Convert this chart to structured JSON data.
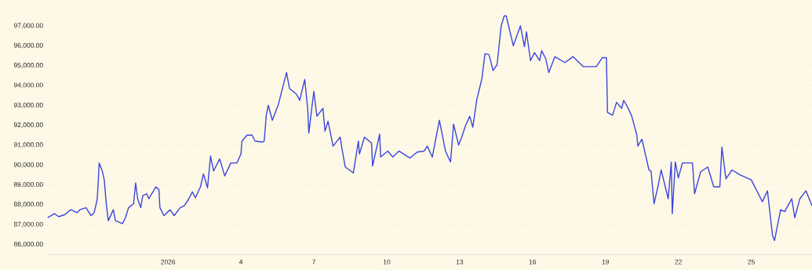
{
  "chart_data": {
    "type": "line",
    "color": "#3b45dc",
    "x": [
      "2025-12-27T01:00",
      "2025-12-27T08:00",
      "2025-12-27T12:00",
      "2025-12-27T18:00",
      "2025-12-28T00:00",
      "2025-12-28T06:00",
      "2025-12-28T09:00",
      "2025-12-28T15:00",
      "2025-12-28T20:00",
      "2025-12-28T23:00",
      "2025-12-29T02:00",
      "2025-12-29T03:00",
      "2025-12-29T04:00",
      "2025-12-29T07:00",
      "2025-12-29T09:00",
      "2025-12-29T11:00",
      "2025-12-29T13:00",
      "2025-12-29T18:00",
      "2025-12-29T20:00",
      "2025-12-30T03:00",
      "2025-12-30T06:00",
      "2025-12-30T09:00",
      "2025-12-30T14:00",
      "2025-12-30T16:00",
      "2025-12-30T18:00",
      "2025-12-30T21:00",
      "2025-12-30T23:00",
      "2025-12-31T03:00",
      "2025-12-31T05:00",
      "2025-12-31T12:00",
      "2025-12-31T15:00",
      "2025-12-31T16:00",
      "2025-12-31T20:00",
      "2026-01-01T02:00",
      "2026-01-01T06:00",
      "2026-01-01T12:00",
      "2026-01-01T16:00",
      "2026-01-01T20:00",
      "2026-01-02T00:00",
      "2026-01-02T03:00",
      "2026-01-02T08:00",
      "2026-01-02T11:00",
      "2026-01-02T15:00",
      "2026-01-02T18:00",
      "2026-01-02T21:00",
      "2026-01-03T03:00",
      "2026-01-03T08:00",
      "2026-01-03T14:00",
      "2026-01-03T20:00",
      "2026-01-04T00:00",
      "2026-01-04T01:00",
      "2026-01-04T06:00",
      "2026-01-04T11:00",
      "2026-01-04T14:00",
      "2026-01-04T21:00",
      "2026-01-04T23:00",
      "2026-01-05T01:00",
      "2026-01-05T03:00",
      "2026-01-05T07:00",
      "2026-01-05T13:00",
      "2026-01-05T17:00",
      "2026-01-05T21:00",
      "2026-01-06T00:00",
      "2026-01-06T07:00",
      "2026-01-06T10:00",
      "2026-01-06T15:00",
      "2026-01-06T18:00",
      "2026-01-06T19:00",
      "2026-01-07T00:00",
      "2026-01-07T03:00",
      "2026-01-07T09:00",
      "2026-01-07T11:00",
      "2026-01-07T14:00",
      "2026-01-07T19:00",
      "2026-01-08T02:00",
      "2026-01-08T04:00",
      "2026-01-08T07:00",
      "2026-01-08T15:00",
      "2026-01-08T20:00",
      "2026-01-08T21:00",
      "2026-01-09T02:00",
      "2026-01-09T09:00",
      "2026-01-09T10:00",
      "2026-01-09T17:00",
      "2026-01-09T18:00",
      "2026-01-10T01:00",
      "2026-01-10T06:00",
      "2026-01-10T12:00",
      "2026-01-10T23:00",
      "2026-01-11T06:00",
      "2026-01-11T13:00",
      "2026-01-11T16:00",
      "2026-01-11T21:00",
      "2026-01-12T04:00",
      "2026-01-12T10:00",
      "2026-01-12T15:00",
      "2026-01-12T18:00",
      "2026-01-12T23:00",
      "2026-01-13T02:00",
      "2026-01-13T06:00",
      "2026-01-13T10:00",
      "2026-01-13T13:00",
      "2026-01-13T17:00",
      "2026-01-13T22:00",
      "2026-01-14T01:00",
      "2026-01-14T05:00",
      "2026-01-14T09:00",
      "2026-01-14T13:00",
      "2026-01-14T17:00",
      "2026-01-14T20:00",
      "2026-01-14T22:00",
      "2026-01-15T05:00",
      "2026-01-15T12:00",
      "2026-01-15T16:00",
      "2026-01-15T18:00",
      "2026-01-15T22:00",
      "2026-01-16T02:00",
      "2026-01-16T07:00",
      "2026-01-16T09:00",
      "2026-01-16T13:00",
      "2026-01-16T16:00",
      "2026-01-16T22:00",
      "2026-01-17T08:00",
      "2026-01-17T16:00",
      "2026-01-18T02:00",
      "2026-01-18T15:00",
      "2026-01-18T21:00",
      "2026-01-19T01:00",
      "2026-01-19T02:00",
      "2026-01-19T07:00",
      "2026-01-19T11:00",
      "2026-01-19T16:00",
      "2026-01-19T18:00",
      "2026-01-19T22:00",
      "2026-01-20T02:00",
      "2026-01-20T07:00",
      "2026-01-20T08:00",
      "2026-01-20T12:00",
      "2026-01-20T19:00",
      "2026-01-20T21:00",
      "2026-01-21T00:00",
      "2026-01-21T04:00",
      "2026-01-21T07:00",
      "2026-01-21T14:00",
      "2026-01-21T17:00",
      "2026-01-21T18:00",
      "2026-01-21T21:00",
      "2026-01-22T00:00",
      "2026-01-22T04:00",
      "2026-01-22T14:00",
      "2026-01-22T16:00",
      "2026-01-22T22:00",
      "2026-01-23T05:00",
      "2026-01-23T11:00",
      "2026-01-23T17:00",
      "2026-01-23T19:00",
      "2026-01-23T23:00",
      "2026-01-24T05:00",
      "2026-01-24T13:00",
      "2026-01-25T00:00",
      "2026-01-25T11:00",
      "2026-01-25T16:00",
      "2026-01-25T21:00",
      "2026-01-25T23:00",
      "2026-01-26T05:00",
      "2026-01-26T09:00",
      "2026-01-26T16:00",
      "2026-01-26T19:00",
      "2026-01-27T00:00",
      "2026-01-27T06:00",
      "2026-01-27T12:00"
    ],
    "values": [
      87350,
      87550,
      87400,
      87500,
      87750,
      87600,
      87750,
      87850,
      87450,
      87600,
      88250,
      89100,
      90100,
      89700,
      89250,
      88050,
      87200,
      87750,
      87200,
      87050,
      87350,
      87850,
      88050,
      89100,
      88300,
      87850,
      88450,
      88550,
      88300,
      88900,
      88750,
      87850,
      87450,
      87750,
      87450,
      87850,
      87950,
      88250,
      88650,
      88350,
      88900,
      89550,
      88850,
      90450,
      89700,
      90300,
      89450,
      90100,
      90100,
      90550,
      91200,
      91500,
      91500,
      91200,
      91150,
      91200,
      92500,
      93000,
      92250,
      93050,
      93850,
      94650,
      93850,
      93550,
      93250,
      94300,
      92800,
      91600,
      93700,
      92450,
      92850,
      91700,
      92200,
      90950,
      91400,
      90750,
      89900,
      89600,
      91200,
      90550,
      91400,
      91100,
      89950,
      91550,
      90400,
      90700,
      90400,
      90700,
      90350,
      90650,
      90700,
      90950,
      90400,
      92250,
      90700,
      90150,
      92050,
      91000,
      91400,
      92000,
      92450,
      91900,
      93300,
      94350,
      95600,
      95550,
      94750,
      95050,
      97000,
      97500,
      97500,
      96000,
      97000,
      95950,
      96700,
      95250,
      95650,
      95250,
      95750,
      95350,
      94650,
      95450,
      95150,
      95450,
      94950,
      94950,
      95400,
      95400,
      92650,
      92500,
      93150,
      92850,
      93250,
      92900,
      92450,
      91500,
      90950,
      91300,
      89750,
      89700,
      88050,
      88950,
      89750,
      88300,
      90150,
      87550,
      90150,
      89350,
      90100,
      90100,
      88550,
      89650,
      89900,
      88900,
      88900,
      90900,
      89300,
      89750,
      89500,
      89250,
      88150,
      88700,
      86450,
      86200,
      87750,
      87650,
      88300,
      87350,
      88300,
      88700,
      87950
    ],
    "xlim": [
      "2025-12-27T01:00",
      "2026-01-27T12:00"
    ],
    "xticks": [
      {
        "value": "2026-01-01",
        "label": "2026"
      },
      {
        "value": "2026-01-04",
        "label": "4"
      },
      {
        "value": "2026-01-07",
        "label": "7"
      },
      {
        "value": "2026-01-10",
        "label": "10"
      },
      {
        "value": "2026-01-13",
        "label": "13"
      },
      {
        "value": "2026-01-16",
        "label": "16"
      },
      {
        "value": "2026-01-19",
        "label": "19"
      },
      {
        "value": "2026-01-22",
        "label": "22"
      },
      {
        "value": "2026-01-25",
        "label": "25"
      }
    ],
    "ylim": [
      85500,
      98300
    ],
    "yticks": [
      {
        "value": 86000,
        "label": "86,000.00"
      },
      {
        "value": 87000,
        "label": "87,000.00"
      },
      {
        "value": 88000,
        "label": "88,000.00"
      },
      {
        "value": 89000,
        "label": "89,000.00"
      },
      {
        "value": 90000,
        "label": "90,000.00"
      },
      {
        "value": 91000,
        "label": "91,000.00"
      },
      {
        "value": 92000,
        "label": "92,000.00"
      },
      {
        "value": 93000,
        "label": "93,000.00"
      },
      {
        "value": 94000,
        "label": "94,000.00"
      },
      {
        "value": 95000,
        "label": "95,000.00"
      },
      {
        "value": 96000,
        "label": "96,000.00"
      },
      {
        "value": 97000,
        "label": "97,000.00"
      }
    ],
    "grid": "y"
  }
}
